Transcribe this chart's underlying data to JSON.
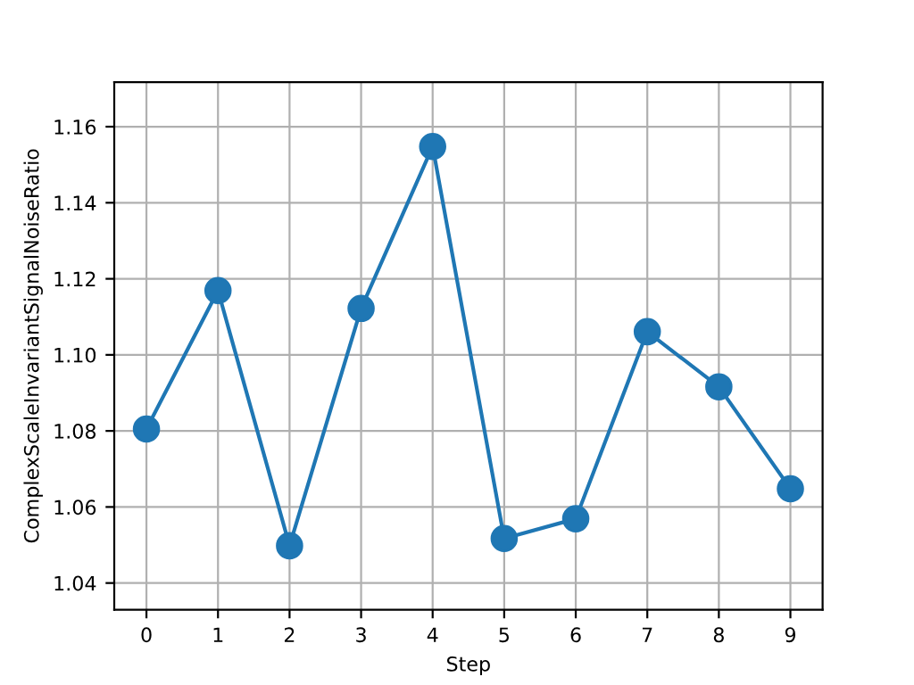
{
  "chart_data": {
    "type": "line",
    "xlabel": "Step",
    "ylabel": "ComplexScaleInvariantSignalNoiseRatio",
    "x": [
      0,
      1,
      2,
      3,
      4,
      5,
      6,
      7,
      8,
      9
    ],
    "series": [
      {
        "color": "#1f77b4",
        "values": [
          1.0805,
          1.1169,
          1.0498,
          1.1122,
          1.1548,
          1.0517,
          1.0569,
          1.1061,
          1.0916,
          1.0648
        ]
      }
    ],
    "xlim": [
      -0.45,
      9.45
    ],
    "xticks": [
      0,
      1,
      2,
      3,
      4,
      5,
      6,
      7,
      8,
      9
    ],
    "ylim": [
      1.033,
      1.1717
    ],
    "yticks": [
      {
        "value": 1.04,
        "label": "1.04"
      },
      {
        "value": 1.06,
        "label": "1.06"
      },
      {
        "value": 1.08,
        "label": "1.08"
      },
      {
        "value": 1.1,
        "label": "1.10"
      },
      {
        "value": 1.12,
        "label": "1.12"
      },
      {
        "value": 1.14,
        "label": "1.14"
      },
      {
        "value": 1.16,
        "label": "1.16"
      }
    ],
    "grid": true,
    "marker": "circle",
    "line_style": "solid",
    "legend": false
  }
}
